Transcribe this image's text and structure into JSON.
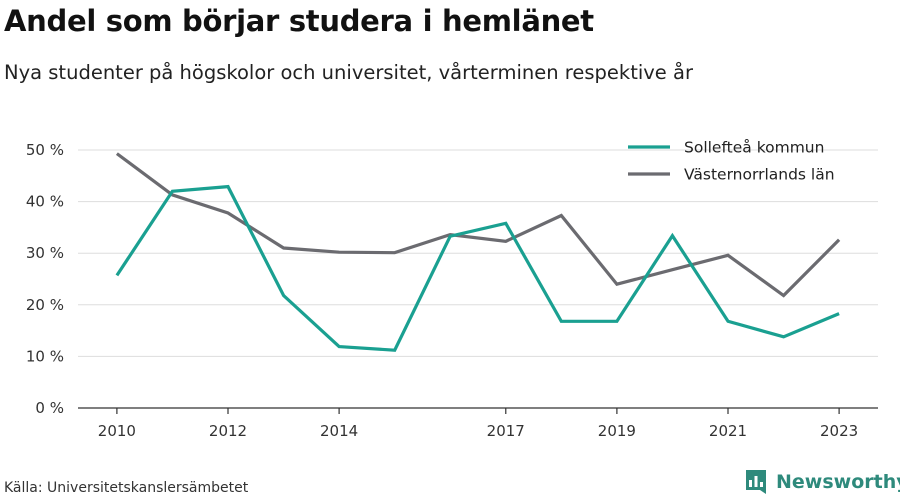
{
  "header": {
    "title": "Andel som börjar studera i hemlänet",
    "subtitle": "Nya studenter på högskolor och universitet, vårterminen respektive år"
  },
  "footer": {
    "source": "Källa: Universitetskanslersämbetet",
    "brand_name": "Newsworthy",
    "brand_icon": "newsworthy-logo-icon",
    "brand_color": "#2e8a7c"
  },
  "chart_data": {
    "type": "line",
    "title": "Andel som börjar studera i hemlänet",
    "subtitle": "Nya studenter på högskolor och universitet, vårterminen respektive år",
    "x": [
      2010,
      2011,
      2012,
      2013,
      2014,
      2015,
      2016,
      2017,
      2018,
      2019,
      2020,
      2021,
      2022,
      2023
    ],
    "x_ticks": [
      2010,
      2012,
      2014,
      2017,
      2019,
      2021,
      2023
    ],
    "x_tick_labels": [
      "2010",
      "2012",
      "2014",
      "2017",
      "2019",
      "2021",
      "2023"
    ],
    "xlim": [
      2009.3,
      2023.7
    ],
    "ylim": [
      0,
      50
    ],
    "y_ticks": [
      0,
      10,
      20,
      30,
      40,
      50
    ],
    "y_tick_labels": [
      "0 %",
      "10 %",
      "20 %",
      "30 %",
      "40 %",
      "50 %"
    ],
    "grid": "horizontal",
    "legend_position": "top-right",
    "series": [
      {
        "name": "Sollefteå kommun",
        "color": "#1aa091",
        "values": [
          25.7,
          42.0,
          42.9,
          21.8,
          11.9,
          11.2,
          33.3,
          35.8,
          16.8,
          16.8,
          33.4,
          16.8,
          13.8,
          18.3
        ]
      },
      {
        "name": "Västernorrlands län",
        "color": "#6b6b70",
        "values": [
          49.3,
          41.3,
          37.8,
          31.0,
          30.2,
          30.1,
          33.6,
          32.3,
          37.3,
          24.0,
          26.8,
          29.6,
          21.8,
          32.6
        ]
      }
    ],
    "axis_color": "#333333",
    "grid_color": "#dddddd"
  }
}
